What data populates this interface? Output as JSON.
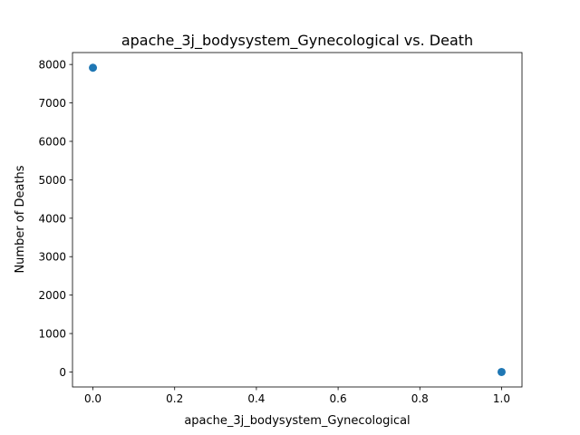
{
  "chart_data": {
    "type": "scatter",
    "title": "apache_3j_bodysystem_Gynecological vs. Death",
    "xlabel": "apache_3j_bodysystem_Gynecological",
    "ylabel": "Number of Deaths",
    "xlim": [
      -0.05,
      1.05
    ],
    "ylim": [
      -390,
      8310
    ],
    "x_ticks": [
      0.0,
      0.2,
      0.4,
      0.6,
      0.8,
      1.0
    ],
    "x_tick_labels": [
      "0.0",
      "0.2",
      "0.4",
      "0.6",
      "0.8",
      "1.0"
    ],
    "y_ticks": [
      0,
      1000,
      2000,
      3000,
      4000,
      5000,
      6000,
      7000,
      8000
    ],
    "y_tick_labels": [
      "0",
      "1000",
      "2000",
      "3000",
      "4000",
      "5000",
      "6000",
      "7000",
      "8000"
    ],
    "points": [
      {
        "x": 0,
        "y": 7915
      },
      {
        "x": 1,
        "y": 0
      }
    ],
    "grid": false,
    "marker_color": "#1f77b4"
  }
}
